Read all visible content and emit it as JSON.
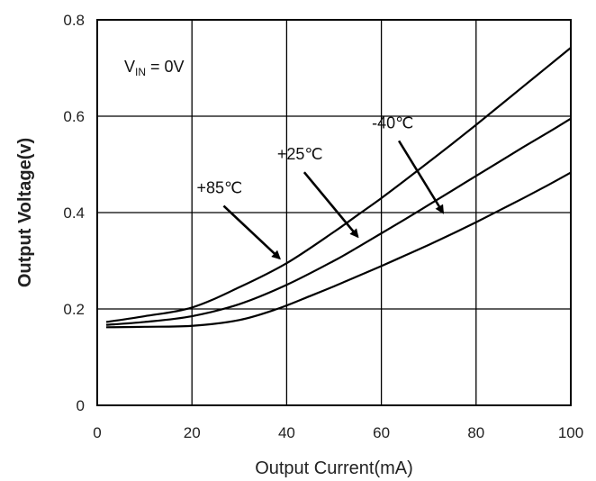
{
  "chart_data": {
    "type": "line",
    "xlabel": "Output Current(mA)",
    "ylabel": "Output Voltage(v)",
    "xlim": [
      0,
      100
    ],
    "ylim": [
      0,
      0.8
    ],
    "x_ticks": [
      "0",
      "20",
      "40",
      "60",
      "80",
      "100"
    ],
    "y_ticks": [
      "0",
      "0.2",
      "0.4",
      "0.6",
      "0.8"
    ],
    "grid": true,
    "condition": {
      "main": "V",
      "sub": "IN",
      "rest": " = 0V"
    },
    "series": [
      {
        "name": "-40℃",
        "x": [
          0,
          10,
          20,
          30,
          38,
          45,
          50,
          55,
          60,
          65,
          70,
          75,
          80,
          85,
          90,
          95,
          100
        ],
        "y": [
          0.162,
          0.163,
          0.165,
          0.177,
          0.2,
          0.227,
          0.247,
          0.268,
          0.289,
          0.311,
          0.333,
          0.356,
          0.38,
          0.405,
          0.43,
          0.456,
          0.483
        ]
      },
      {
        "name": "+25℃",
        "x": [
          0,
          10,
          20,
          30,
          40,
          50,
          55,
          60,
          65,
          70,
          75,
          80,
          85,
          90,
          95,
          100
        ],
        "y": [
          0.167,
          0.173,
          0.185,
          0.21,
          0.25,
          0.3,
          0.328,
          0.357,
          0.386,
          0.416,
          0.446,
          0.476,
          0.506,
          0.536,
          0.565,
          0.595
        ]
      },
      {
        "name": "+85℃",
        "x": [
          0,
          10,
          20,
          30,
          40,
          50,
          55,
          60,
          65,
          70,
          75,
          80,
          85,
          90,
          95,
          100
        ],
        "y": [
          0.173,
          0.185,
          0.203,
          0.245,
          0.295,
          0.36,
          0.395,
          0.43,
          0.467,
          0.505,
          0.543,
          0.582,
          0.622,
          0.662,
          0.702,
          0.742
        ]
      }
    ],
    "annotations": [
      {
        "label": "-40℃",
        "x": 58,
        "y": 0.575,
        "arrow_to": [
          73,
          0.4
        ]
      },
      {
        "label": "+25℃",
        "x": 38,
        "y": 0.51,
        "arrow_to": [
          55,
          0.35
        ]
      },
      {
        "label": "+85℃",
        "x": 21,
        "y": 0.44,
        "arrow_to": [
          38.5,
          0.305
        ]
      }
    ]
  }
}
